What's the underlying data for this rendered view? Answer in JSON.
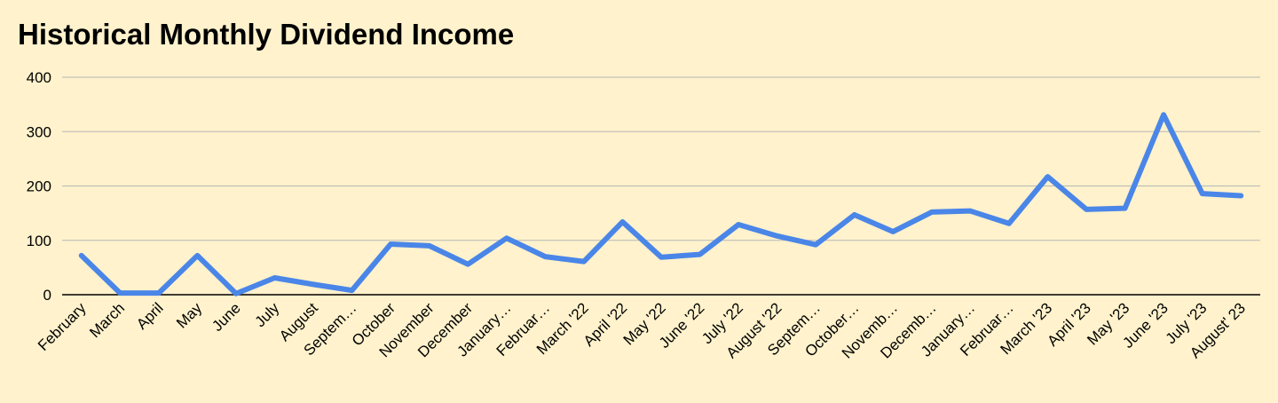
{
  "chart_data": {
    "type": "line",
    "title": "Historical Monthly Dividend Income",
    "categories": [
      "February",
      "March",
      "April",
      "May",
      "June",
      "July",
      "August",
      "Septem…",
      "October",
      "November",
      "December",
      "January…",
      "Februar…",
      "March '22",
      "April '22",
      "May '22",
      "June '22",
      "July '22",
      "August '22",
      "Septem…",
      "October…",
      "Novemb…",
      "Decemb…",
      "January…",
      "Februar…",
      "March '23",
      "April '23",
      "May '23",
      "June '23",
      "July '23",
      "August' 23"
    ],
    "series": [
      {
        "color": "#4a86e8",
        "values": [
          72,
          3,
          3,
          72,
          2,
          31,
          19,
          8,
          93,
          90,
          56,
          104,
          70,
          61,
          134,
          69,
          74,
          129,
          108,
          92,
          147,
          116,
          152,
          154,
          131,
          217,
          157,
          159,
          331,
          186,
          182
        ]
      }
    ],
    "ylim": [
      0,
      400
    ],
    "yticks": [
      0,
      100,
      200,
      300,
      400
    ],
    "grid": true
  }
}
